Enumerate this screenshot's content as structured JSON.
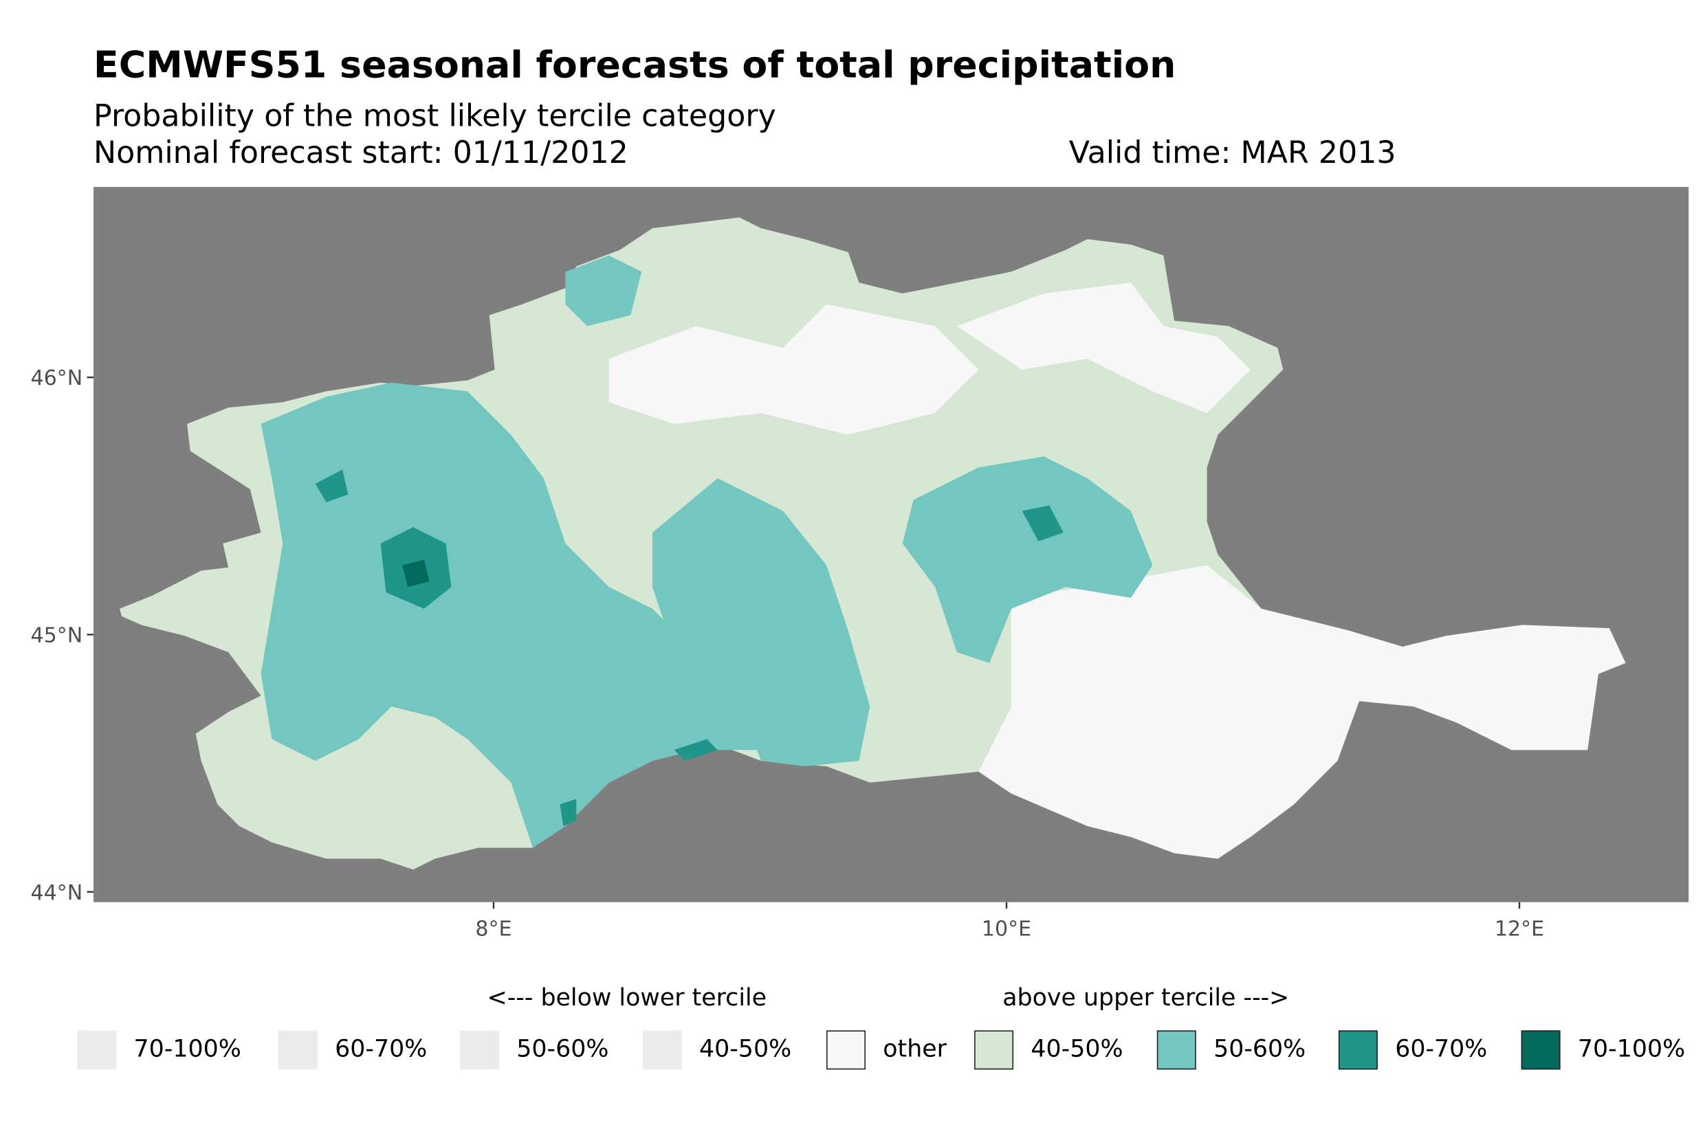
{
  "title": "ECMWFS51 seasonal forecasts of total precipitation",
  "subtitle": "Probability of the most likely tercile category",
  "forecast_start": "Nominal forecast start: 01/11/2012",
  "valid_time": "Valid time: MAR 2013",
  "chart_data": {
    "type": "heatmap",
    "title": "ECMWFS51 seasonal forecasts of total precipitation",
    "xlabel": "",
    "ylabel": "",
    "xlim": [
      6.44,
      12.66
    ],
    "ylim": [
      43.96,
      46.74
    ],
    "x_ticks": [
      {
        "value": 8,
        "label": "8°E"
      },
      {
        "value": 10,
        "label": "10°E"
      },
      {
        "value": 12,
        "label": "12°E"
      }
    ],
    "y_ticks": [
      {
        "value": 44,
        "label": "44°N"
      },
      {
        "value": 45,
        "label": "45°N"
      },
      {
        "value": 46,
        "label": "46°N"
      }
    ],
    "background_color": "#7f7f7f",
    "legend": {
      "placement": "bottom",
      "below_header": "<--- below lower tercile",
      "above_header": "above upper tercile --->",
      "items": [
        {
          "label": "70-100%",
          "color": "#ebebeb",
          "group": "below"
        },
        {
          "label": "60-70%",
          "color": "#ebebeb",
          "group": "below"
        },
        {
          "label": "50-60%",
          "color": "#ebebeb",
          "group": "below"
        },
        {
          "label": "40-50%",
          "color": "#ebebeb",
          "group": "below"
        },
        {
          "label": "other",
          "color": "#f7f7f7",
          "group": "other"
        },
        {
          "label": "40-50%",
          "color": "#d6e8d4",
          "group": "above"
        },
        {
          "label": "50-60%",
          "color": "#74c6c0",
          "group": "above"
        },
        {
          "label": "60-70%",
          "color": "#20958a",
          "group": "above"
        },
        {
          "label": "70-100%",
          "color": "#03695c",
          "group": "above"
        }
      ]
    }
  }
}
